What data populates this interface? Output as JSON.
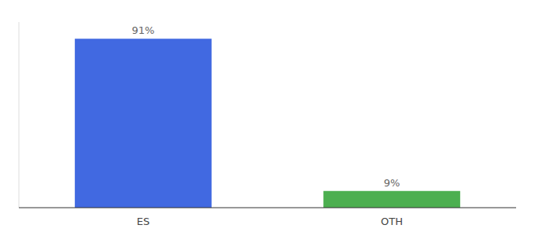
{
  "chart_data": {
    "type": "bar",
    "categories": [
      "ES",
      "OTH"
    ],
    "values": [
      91,
      9
    ],
    "value_labels": [
      "91%",
      "9%"
    ],
    "colors": [
      "#4169e1",
      "#4caf50"
    ],
    "ylim": [
      0,
      100
    ],
    "data_labels": true,
    "tick_labels": "x",
    "grid": false
  }
}
